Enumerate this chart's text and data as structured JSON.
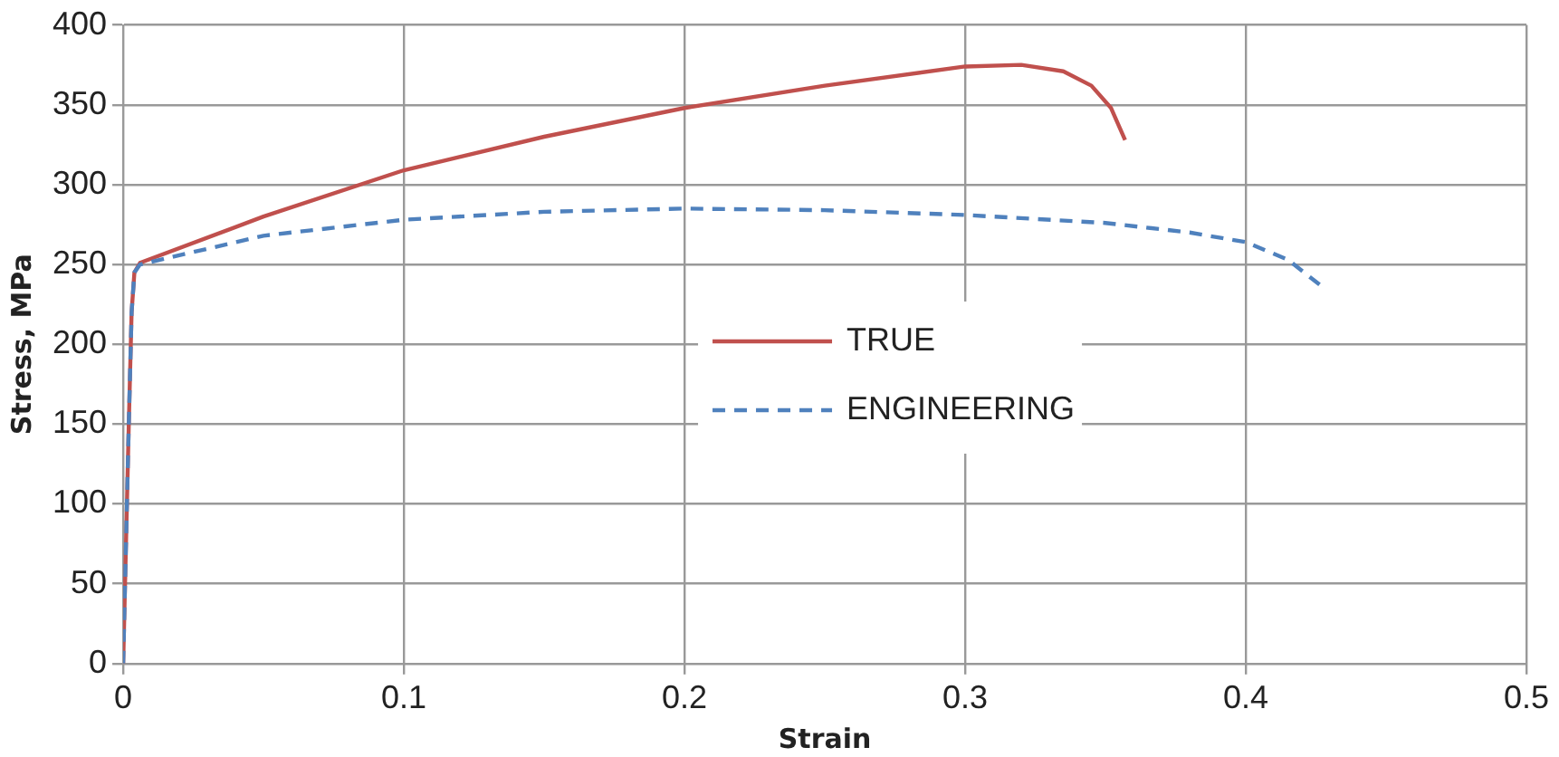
{
  "chart_data": {
    "type": "line",
    "xlabel": "Strain",
    "ylabel": "Stress, MPa",
    "xlim": [
      0,
      0.5
    ],
    "xticks": [
      0,
      0.1,
      0.2,
      0.3,
      0.4,
      0.5
    ],
    "ylim": [
      0,
      400
    ],
    "yticks": [
      0,
      50,
      100,
      150,
      200,
      250,
      300,
      350,
      400
    ],
    "grid": true,
    "legend": "center",
    "marker": "none",
    "series": [
      {
        "name": "TRUE",
        "color": "#c0504d",
        "line_style": "solid",
        "x": [
          0,
          0.002,
          0.003,
          0.004,
          0.006,
          0.05,
          0.1,
          0.15,
          0.2,
          0.25,
          0.3,
          0.32,
          0.335,
          0.345,
          0.352,
          0.357
        ],
        "values": [
          0,
          150,
          220,
          245,
          251,
          280,
          309,
          330,
          348,
          362,
          374,
          375,
          371,
          362,
          348,
          328
        ]
      },
      {
        "name": "ENGINEERING",
        "color": "#4f81bd",
        "line_style": "dashed",
        "x": [
          0,
          0.002,
          0.003,
          0.004,
          0.006,
          0.05,
          0.1,
          0.15,
          0.2,
          0.25,
          0.3,
          0.35,
          0.38,
          0.4,
          0.415,
          0.428
        ],
        "values": [
          0,
          150,
          220,
          245,
          250,
          268,
          278,
          283,
          285,
          284,
          281,
          276,
          270,
          264,
          253,
          235
        ]
      }
    ]
  }
}
